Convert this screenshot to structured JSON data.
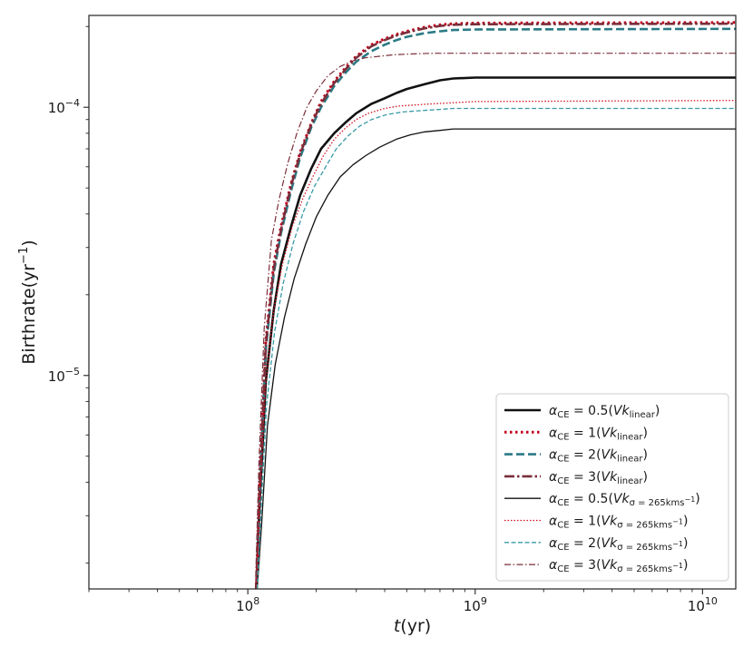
{
  "chart_data": {
    "type": "line",
    "title": "",
    "xscale": "log",
    "yscale": "log",
    "xlim": [
      20000000,
      14000000000
    ],
    "ylim": [
      1.6e-06,
      0.00022
    ],
    "grid": false,
    "legend_position": "lower-right",
    "xlabel": {
      "main": "t",
      "unit": "(yr)"
    },
    "ylabel": {
      "main": "Birthrate(yr",
      "sup": "−1",
      "tail": ")"
    },
    "xticks": [
      {
        "value": 100000000,
        "base": "10",
        "exp": "8"
      },
      {
        "value": 1000000000,
        "base": "10",
        "exp": "9"
      },
      {
        "value": 10000000000,
        "base": "10",
        "exp": "10"
      }
    ],
    "yticks": [
      {
        "value": 1e-05,
        "base": "10",
        "exp": "−5"
      },
      {
        "value": 0.0001,
        "base": "10",
        "exp": "−4"
      }
    ],
    "series": [
      {
        "name": "α_CE = 0.5(Vk_linear)",
        "label": {
          "pre": "α",
          "presub": "CE",
          "mid": " = 0.5(",
          "vk": "Vk",
          "vksub": "linear",
          "post": ")"
        },
        "color": "#111111",
        "dash": "",
        "width": 2.6,
        "x": [
          109000000,
          113000000,
          120000000,
          130000000,
          140000000,
          155000000,
          170000000,
          190000000,
          210000000,
          240000000,
          270000000,
          300000000,
          350000000,
          400000000,
          450000000,
          500000000,
          600000000,
          700000000,
          800000000,
          1000000000,
          14000000000
        ],
        "y": [
          1.6e-06,
          3.5e-06,
          9.5e-06,
          1.75e-05,
          2.6e-05,
          3.6e-05,
          4.7e-05,
          5.9e-05,
          7e-05,
          8e-05,
          8.8e-05,
          9.5e-05,
          0.000103,
          0.000108,
          0.000113,
          0.000117,
          0.000122,
          0.000126,
          0.000128,
          0.000129,
          0.000129
        ]
      },
      {
        "name": "α_CE = 1(Vk_linear)",
        "label": {
          "pre": "α",
          "presub": "CE",
          "mid": " = 1(",
          "vk": "Vk",
          "vksub": "linear",
          "post": ")"
        },
        "color": "#c0001a",
        "dash": "2.5 3.5",
        "width": 3,
        "x": [
          109000000,
          113000000,
          120000000,
          130000000,
          140000000,
          155000000,
          170000000,
          190000000,
          210000000,
          240000000,
          270000000,
          300000000,
          350000000,
          400000000,
          450000000,
          500000000,
          600000000,
          700000000,
          800000000,
          1000000000,
          14000000000
        ],
        "y": [
          1.6e-06,
          4.2e-06,
          1.35e-05,
          2.6e-05,
          3.6e-05,
          5.2e-05,
          6.8e-05,
          8.7e-05,
          0.000105,
          0.000125,
          0.000141,
          0.000155,
          0.000171,
          0.00018,
          0.000187,
          0.000192,
          0.000199,
          0.000203,
          0.000205,
          0.000206,
          0.000207
        ]
      },
      {
        "name": "α_CE = 2(Vk_linear)",
        "label": {
          "pre": "α",
          "presub": "CE",
          "mid": " = 2(",
          "vk": "Vk",
          "vksub": "linear",
          "post": ")"
        },
        "color": "#2a7a85",
        "dash": "9 4",
        "width": 2.6,
        "x": [
          109000000,
          113000000,
          120000000,
          130000000,
          140000000,
          155000000,
          170000000,
          190000000,
          210000000,
          240000000,
          270000000,
          300000000,
          350000000,
          400000000,
          450000000,
          500000000,
          600000000,
          700000000,
          800000000,
          1000000000,
          14000000000
        ],
        "y": [
          1.6e-06,
          3.8e-06,
          1.25e-05,
          2.4e-05,
          3.4e-05,
          4.9e-05,
          6.5e-05,
          8.4e-05,
          0.0001,
          0.00012,
          0.000135,
          0.000148,
          0.000162,
          0.000171,
          0.000178,
          0.000183,
          0.000189,
          0.000192,
          0.000194,
          0.000195,
          0.000196
        ]
      },
      {
        "name": "α_CE = 3(Vk_linear)",
        "label": {
          "pre": "α",
          "presub": "CE",
          "mid": " = 3(",
          "vk": "Vk",
          "vksub": "linear",
          "post": ")"
        },
        "color": "#7a2e3a",
        "dash": "11 3 2.5 3",
        "width": 2.6,
        "x": [
          109000000,
          113000000,
          120000000,
          130000000,
          140000000,
          155000000,
          170000000,
          190000000,
          210000000,
          240000000,
          270000000,
          300000000,
          350000000,
          400000000,
          450000000,
          500000000,
          600000000,
          700000000,
          800000000,
          1000000000,
          14000000000
        ],
        "y": [
          1.6e-06,
          4e-06,
          1.3e-05,
          2.5e-05,
          3.5e-05,
          5.1e-05,
          6.7e-05,
          8.6e-05,
          0.000103,
          0.000123,
          0.000139,
          0.000153,
          0.000169,
          0.000178,
          0.000185,
          0.00019,
          0.000197,
          0.000201,
          0.000203,
          0.000204,
          0.000205
        ]
      },
      {
        "name": "α_CE = 0.5(Vk_σ=265kms−1)",
        "label": {
          "pre": "α",
          "presub": "CE",
          "mid": " = 0.5(",
          "vk": "Vk",
          "vksub": "σ = 265kms",
          "vksubsup": "−1",
          "post": ")"
        },
        "color": "#111111",
        "dash": "",
        "width": 1.3,
        "x": [
          110000000,
          115000000,
          122000000,
          132000000,
          145000000,
          160000000,
          180000000,
          200000000,
          225000000,
          255000000,
          290000000,
          330000000,
          380000000,
          450000000,
          520000000,
          600000000,
          700000000,
          800000000,
          14000000000
        ],
        "y": [
          1.6e-06,
          2.8e-06,
          6.5e-06,
          1.1e-05,
          1.65e-05,
          2.3e-05,
          3.1e-05,
          3.9e-05,
          4.7e-05,
          5.5e-05,
          6.1e-05,
          6.6e-05,
          7.1e-05,
          7.6e-05,
          7.9e-05,
          8.1e-05,
          8.2e-05,
          8.3e-05,
          8.3e-05
        ]
      },
      {
        "name": "α_CE = 1(Vk_σ=265kms−1)",
        "label": {
          "pre": "α",
          "presub": "CE",
          "mid": " = 1(",
          "vk": "Vk",
          "vksub": "σ = 265kms",
          "vksubsup": "−1",
          "post": ")"
        },
        "color": "#d0101f",
        "dash": "1.5 2",
        "width": 1.3,
        "x": [
          109000000,
          113000000,
          120000000,
          130000000,
          142000000,
          157000000,
          175000000,
          195000000,
          215000000,
          240000000,
          270000000,
          300000000,
          340000000,
          400000000,
          460000000,
          540000000,
          650000000,
          800000000,
          1000000000,
          14000000000
        ],
        "y": [
          1.6e-06,
          3.5e-06,
          9.5e-06,
          1.75e-05,
          2.6e-05,
          3.6e-05,
          4.6e-05,
          5.6e-05,
          6.6e-05,
          7.6e-05,
          8.4e-05,
          9e-05,
          9.5e-05,
          9.9e-05,
          0.000101,
          0.000102,
          0.000103,
          0.000104,
          0.000105,
          0.000106
        ]
      },
      {
        "name": "α_CE = 2(Vk_σ=265kms−1)",
        "label": {
          "pre": "α",
          "presub": "CE",
          "mid": " = 2(",
          "vk": "Vk",
          "vksub": "σ = 265kms",
          "vksubsup": "−1",
          "post": ")"
        },
        "color": "#3a9aa5",
        "dash": "5 2.5",
        "width": 1.3,
        "x": [
          110000000,
          114000000,
          121000000,
          131000000,
          143000000,
          158000000,
          176000000,
          197000000,
          220000000,
          245000000,
          275000000,
          310000000,
          350000000,
          410000000,
          480000000,
          560000000,
          680000000,
          800000000,
          14000000000
        ],
        "y": [
          1.6e-06,
          3e-06,
          7.8e-06,
          1.45e-05,
          2.2e-05,
          3.1e-05,
          4.1e-05,
          5.1e-05,
          6e-05,
          7e-05,
          7.8e-05,
          8.5e-05,
          9e-05,
          9.4e-05,
          9.6e-05,
          9.7e-05,
          9.8e-05,
          9.9e-05,
          9.9e-05
        ]
      },
      {
        "name": "α_CE = 3(Vk_σ=265kms−1)",
        "label": {
          "pre": "α",
          "presub": "CE",
          "mid": " = 3(",
          "vk": "Vk",
          "vksub": "σ = 265kms",
          "vksubsup": "−1",
          "post": ")"
        },
        "color": "#7a2e3a",
        "dash": "7 2.5 1.5 2.5",
        "width": 1.2,
        "x": [
          108000000,
          112000000,
          118000000,
          127000000,
          137000000,
          150000000,
          165000000,
          182000000,
          200000000,
          225000000,
          255000000,
          290000000,
          330000000,
          380000000,
          440000000,
          520000000,
          650000000,
          800000000,
          1000000000,
          14000000000
        ],
        "y": [
          1.6e-06,
          4.8e-06,
          1.5e-05,
          3.2e-05,
          4.5e-05,
          6.2e-05,
          8.1e-05,
          0.0001,
          0.000115,
          0.000131,
          0.000142,
          0.000149,
          0.000153,
          0.000155,
          0.000157,
          0.000158,
          0.000159,
          0.000159,
          0.000159,
          0.000159
        ]
      }
    ]
  }
}
